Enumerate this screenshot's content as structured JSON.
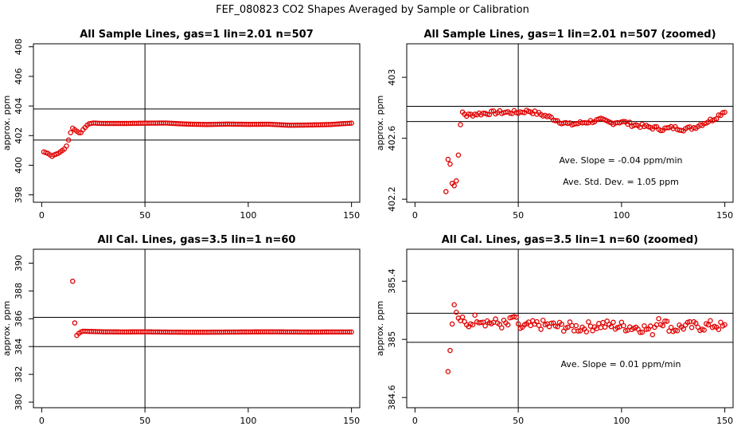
{
  "title": "FEF_080823  CO2 Shapes Averaged by Sample or Calibration",
  "chart_data": [
    {
      "type": "scatter",
      "title": "All Sample Lines, gas=1 lin=2.01 n=507",
      "ylabel": "approx. ppm",
      "xlim": [
        -4,
        154
      ],
      "ylim": [
        397.5,
        408.2
      ],
      "xticks": [
        0,
        50,
        100,
        150
      ],
      "yticks": [
        398,
        400,
        402,
        404,
        406,
        408
      ],
      "hlines": [
        403.8,
        401.7
      ],
      "vlines": [
        50
      ],
      "annotations": [],
      "curve": [
        [
          1,
          400.9
        ],
        [
          3,
          400.8
        ],
        [
          5,
          400.6
        ],
        [
          6,
          400.7
        ],
        [
          8,
          400.8
        ],
        [
          9,
          400.9
        ],
        [
          10,
          401.0
        ],
        [
          11,
          401.1
        ],
        [
          12,
          401.3
        ],
        [
          13,
          401.7
        ],
        [
          14,
          402.2
        ],
        [
          15,
          402.5
        ],
        [
          16,
          402.4
        ],
        [
          17,
          402.3
        ],
        [
          18,
          402.2
        ],
        [
          19,
          402.2
        ],
        [
          20,
          402.4
        ],
        [
          21,
          402.55
        ],
        [
          22,
          402.7
        ],
        [
          23,
          402.8
        ],
        [
          25,
          402.85
        ],
        [
          30,
          402.82
        ],
        [
          40,
          402.82
        ],
        [
          50,
          402.84
        ],
        [
          60,
          402.85
        ],
        [
          70,
          402.78
        ],
        [
          80,
          402.75
        ],
        [
          90,
          402.78
        ],
        [
          100,
          402.76
        ],
        [
          110,
          402.77
        ],
        [
          120,
          402.7
        ],
        [
          130,
          402.72
        ],
        [
          140,
          402.75
        ],
        [
          145,
          402.8
        ],
        [
          150,
          402.84
        ]
      ]
    },
    {
      "type": "scatter",
      "title": "All Sample Lines, gas=1 lin=2.01 n=507 (zoomed)",
      "ylabel": "approx. ppm",
      "xlim": [
        -4,
        154
      ],
      "ylim": [
        402.18,
        403.22
      ],
      "xticks": [
        0,
        50,
        100,
        150
      ],
      "yticks": [
        402.2,
        402.6,
        403.0
      ],
      "hlines": [
        402.81,
        402.71
      ],
      "vlines": [
        50
      ],
      "annotations": [
        "Ave. Slope =  -0.04  ppm/min",
        "Ave. Std. Dev. =  1.05  ppm"
      ],
      "curve": [
        [
          15,
          402.25
        ],
        [
          16,
          402.46
        ],
        [
          17,
          402.44
        ],
        [
          18,
          402.31
        ],
        [
          19,
          402.29
        ],
        [
          20,
          402.32
        ],
        [
          21,
          402.5
        ],
        [
          22,
          402.68
        ],
        [
          23,
          402.77
        ],
        [
          25,
          402.75
        ],
        [
          30,
          402.76
        ],
        [
          40,
          402.77
        ],
        [
          50,
          402.77
        ],
        [
          55,
          402.78
        ],
        [
          60,
          402.76
        ],
        [
          65,
          402.74
        ],
        [
          70,
          402.71
        ],
        [
          75,
          402.69
        ],
        [
          80,
          402.7
        ],
        [
          90,
          402.72
        ],
        [
          95,
          402.7
        ],
        [
          100,
          402.71
        ],
        [
          105,
          402.69
        ],
        [
          110,
          402.68
        ],
        [
          115,
          402.67
        ],
        [
          120,
          402.66
        ],
        [
          125,
          402.67
        ],
        [
          130,
          402.66
        ],
        [
          135,
          402.67
        ],
        [
          140,
          402.7
        ],
        [
          145,
          402.73
        ],
        [
          150,
          402.78
        ]
      ],
      "jitter": 0.012
    },
    {
      "type": "scatter",
      "title": "All Cal. Lines, gas=3.5 lin=1 n=60",
      "ylabel": "approx. ppm",
      "xlim": [
        -4,
        154
      ],
      "ylim": [
        379.6,
        391.0
      ],
      "xticks": [
        0,
        50,
        100,
        150
      ],
      "yticks": [
        380,
        382,
        384,
        386,
        388,
        390
      ],
      "hlines": [
        386.1,
        384.0
      ],
      "vlines": [
        50
      ],
      "annotations": [],
      "curve": [
        [
          15,
          388.7
        ],
        [
          16,
          385.7
        ],
        [
          17,
          384.8
        ],
        [
          18,
          384.95
        ],
        [
          19,
          385.05
        ],
        [
          20,
          385.1
        ],
        [
          25,
          385.08
        ],
        [
          30,
          385.06
        ],
        [
          40,
          385.05
        ],
        [
          50,
          385.06
        ],
        [
          60,
          385.04
        ],
        [
          70,
          385.03
        ],
        [
          80,
          385.03
        ],
        [
          90,
          385.04
        ],
        [
          100,
          385.05
        ],
        [
          110,
          385.06
        ],
        [
          120,
          385.05
        ],
        [
          130,
          385.04
        ],
        [
          140,
          385.05
        ],
        [
          150,
          385.05
        ]
      ]
    },
    {
      "type": "scatter",
      "title": "All Cal. Lines, gas=3.5 lin=1 n=60 (zoomed)",
      "ylabel": "approx. ppm",
      "xlim": [
        -4,
        154
      ],
      "ylim": [
        384.53,
        385.62
      ],
      "xticks": [
        0,
        50,
        100,
        150
      ],
      "yticks": [
        384.6,
        385.0,
        385.4
      ],
      "hlines": [
        385.18,
        384.98
      ],
      "vlines": [
        50
      ],
      "annotations": [
        "Ave. Slope =  0.01  ppm/min"
      ],
      "curve": [
        [
          16,
          384.78
        ],
        [
          17,
          384.93
        ],
        [
          18,
          385.14
        ],
        [
          19,
          385.22
        ],
        [
          20,
          385.19
        ],
        [
          21,
          385.13
        ],
        [
          22,
          385.14
        ],
        [
          25,
          385.09
        ],
        [
          28,
          385.13
        ],
        [
          30,
          385.15
        ],
        [
          35,
          385.12
        ],
        [
          40,
          385.11
        ],
        [
          45,
          385.1
        ],
        [
          48,
          385.16
        ],
        [
          50,
          385.08
        ],
        [
          60,
          385.1
        ],
        [
          70,
          385.09
        ],
        [
          80,
          385.08
        ],
        [
          90,
          385.1
        ],
        [
          100,
          385.09
        ],
        [
          110,
          385.08
        ],
        [
          115,
          385.06
        ],
        [
          118,
          385.15
        ],
        [
          120,
          385.12
        ],
        [
          125,
          385.07
        ],
        [
          130,
          385.09
        ],
        [
          140,
          385.09
        ],
        [
          145,
          385.1
        ],
        [
          150,
          385.08
        ]
      ],
      "jitter": 0.035
    }
  ]
}
